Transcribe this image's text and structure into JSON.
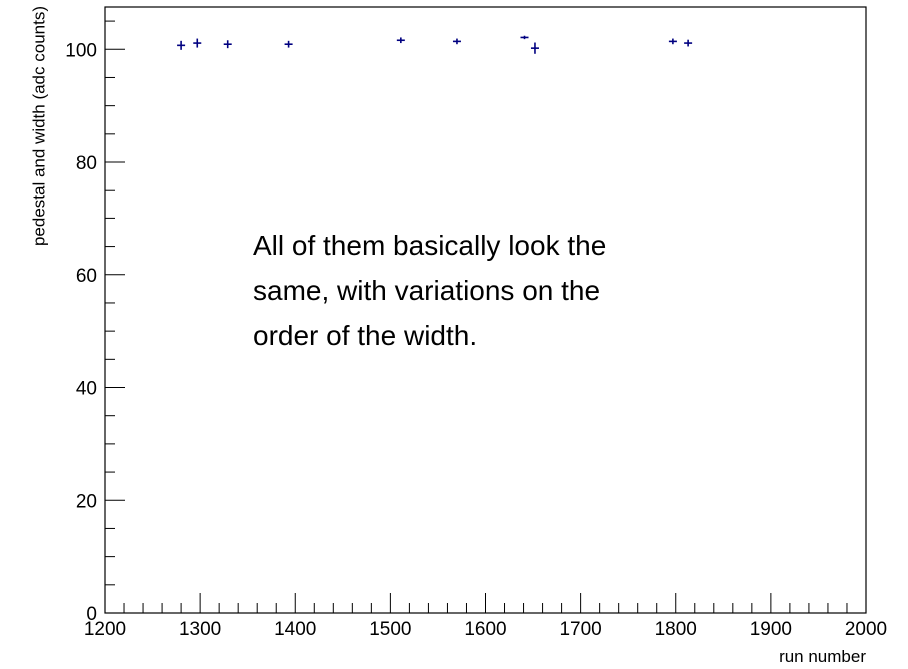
{
  "chart_data": {
    "type": "scatter",
    "x_label": "run number",
    "y_label": "pedestal and width (adc counts)",
    "annotation": [
      "All of them basically look the",
      "same, with variations on the",
      "order of the width."
    ],
    "series": [
      {
        "color": "#000080",
        "x": [
          1280,
          1297,
          1329,
          1393,
          1511,
          1570,
          1641,
          1652,
          1797,
          1813
        ],
        "values": [
          100.7,
          101.1,
          100.9,
          100.9,
          101.6,
          101.4,
          102.1,
          100.2,
          101.4,
          101.1
        ],
        "errors": [
          0.8,
          0.8,
          0.7,
          0.6,
          0.5,
          0.5,
          0.3,
          1.0,
          0.5,
          0.6
        ]
      }
    ],
    "xlim": [
      1200,
      2000
    ],
    "xticks": [
      1200,
      1300,
      1400,
      1500,
      1600,
      1700,
      1800,
      1900,
      2000
    ],
    "ylim": [
      0,
      107.5
    ],
    "yticks": [
      0,
      20,
      40,
      60,
      80,
      100
    ]
  }
}
